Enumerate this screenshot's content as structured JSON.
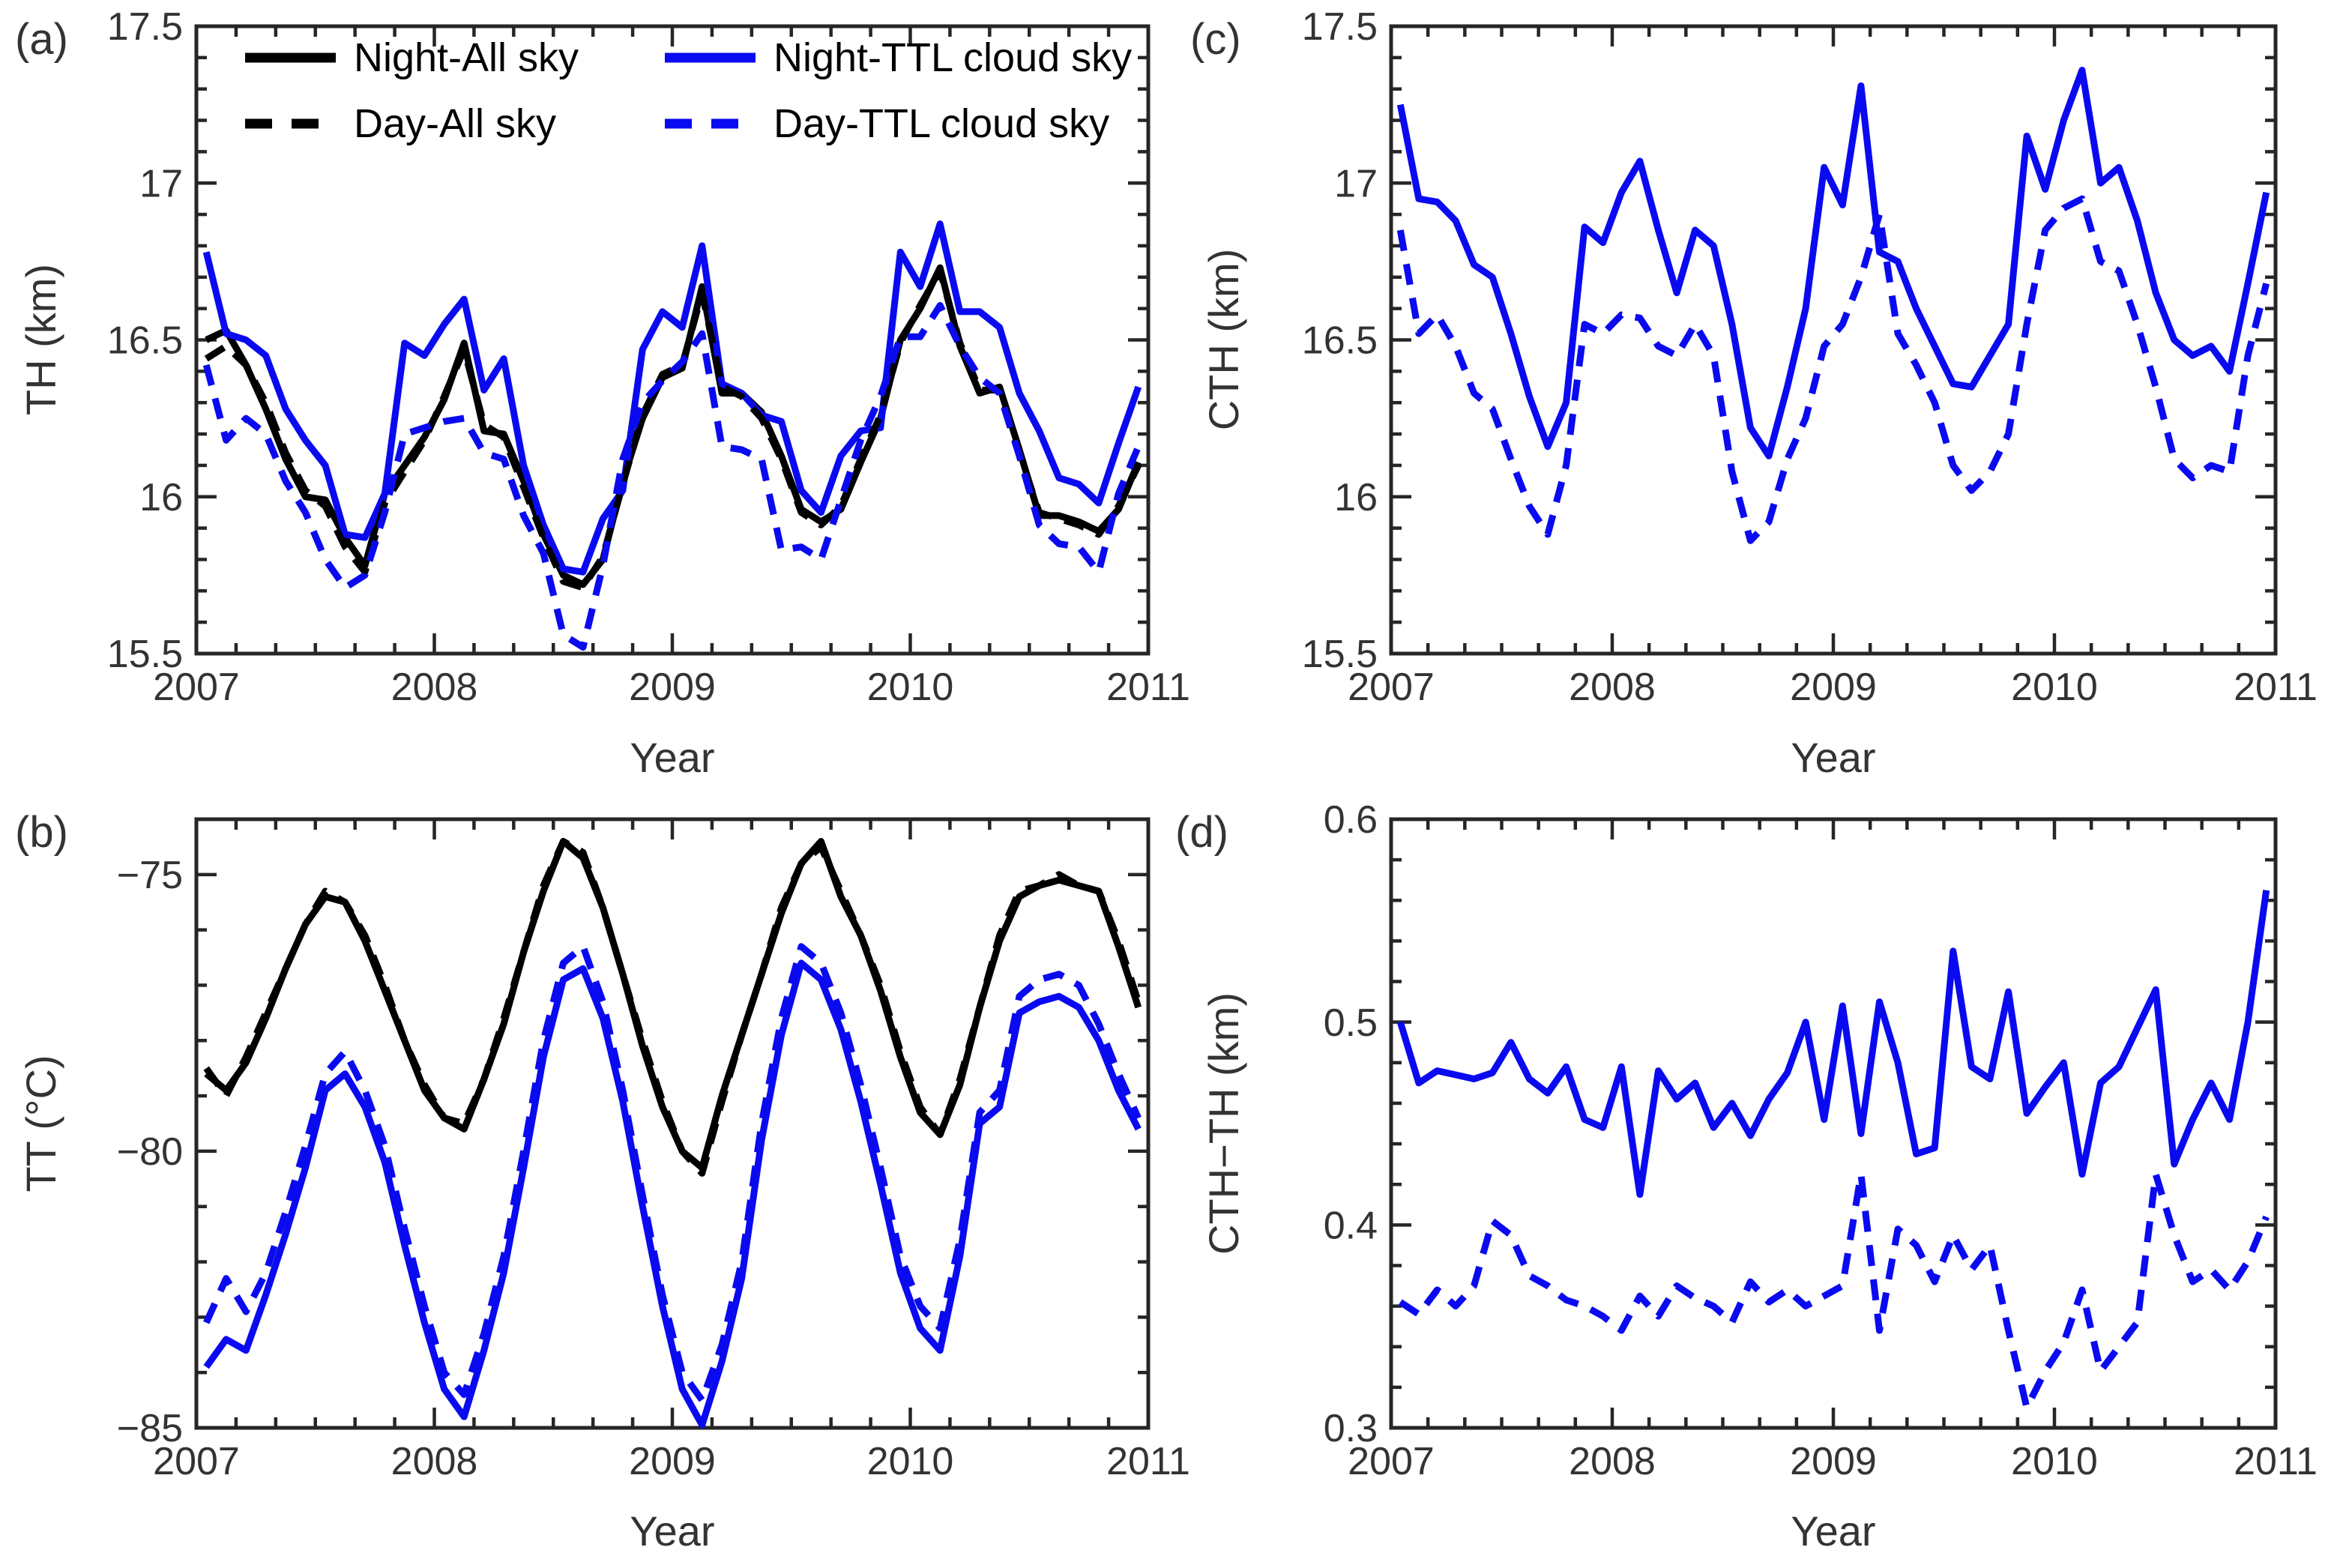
{
  "figure": {
    "background": "#ffffff",
    "description": "Four-panel line figure of monthly time series 2007-2010"
  },
  "colors": {
    "black": "#000000",
    "blue": "#0a0af0",
    "axis": "#262626",
    "tick_label": "#333333"
  },
  "legend": {
    "entries": [
      {
        "label": "Night-All sky",
        "color": "#000000",
        "dashed": false
      },
      {
        "label": "Day-All sky",
        "color": "#000000",
        "dashed": true
      },
      {
        "label": "Night-TTL cloud sky",
        "color": "#0a0af0",
        "dashed": false
      },
      {
        "label": "Day-TTL cloud sky",
        "color": "#0a0af0",
        "dashed": true
      }
    ]
  },
  "chart_data": {
    "type": "line",
    "x": {
      "start": 2007.0417,
      "step": 0.0833333,
      "count": 48,
      "unit": "year",
      "grid": false,
      "legend_position": "top-left panel (a), no frame"
    },
    "panels": [
      {
        "id": "a",
        "letter": "(a)",
        "ylabel": "TH (km)",
        "xlabel": "Year",
        "box": {
          "x0": 262,
          "y0": 35,
          "x1": 1532,
          "y1": 872
        },
        "xlim": [
          2007,
          2011
        ],
        "ylim": [
          15.5,
          17.5
        ],
        "xticks": {
          "values": [
            2007,
            2008,
            2009,
            2010,
            2011
          ],
          "labels": [
            "2007",
            "2008",
            "2009",
            "2010",
            "2011"
          ],
          "minor_step": 0.1666667
        },
        "yticks": {
          "values": [
            15.5,
            16,
            16.5,
            17,
            17.5
          ],
          "labels": [
            "15.5",
            "16",
            "16.5",
            "17",
            "17.5"
          ],
          "minor_step": 0.1
        },
        "series": [
          {
            "name": "Night-All sky",
            "color": "#000000",
            "dashed": false,
            "values": [
              16.5,
              16.53,
              16.42,
              16.28,
              16.12,
              16.0,
              15.99,
              15.87,
              15.78,
              16.01,
              16.1,
              16.19,
              16.31,
              16.49,
              16.21,
              16.2,
              16.05,
              15.88,
              15.75,
              15.72,
              15.8,
              16.05,
              16.25,
              16.38,
              16.41,
              16.67,
              16.33,
              16.33,
              16.27,
              16.13,
              15.96,
              15.92,
              15.96,
              16.11,
              16.25,
              16.5,
              16.6,
              16.73,
              16.48,
              16.33,
              16.35,
              16.15,
              15.94,
              15.94,
              15.92,
              15.89,
              15.96,
              16.11
            ]
          },
          {
            "name": "Day-All sky",
            "color": "#000000",
            "dashed": true,
            "values": [
              16.44,
              16.48,
              16.42,
              16.3,
              16.14,
              16.02,
              15.97,
              15.84,
              15.76,
              15.98,
              16.08,
              16.18,
              16.32,
              16.47,
              16.23,
              16.19,
              16.03,
              15.87,
              15.73,
              15.71,
              15.81,
              16.04,
              16.26,
              16.39,
              16.42,
              16.65,
              16.35,
              16.32,
              16.25,
              16.12,
              15.95,
              15.91,
              15.97,
              16.12,
              16.26,
              16.49,
              16.61,
              16.72,
              16.49,
              16.34,
              16.34,
              16.14,
              15.95,
              15.93,
              15.91,
              15.88,
              15.97,
              16.1
            ]
          },
          {
            "name": "Night-TTL cloud sky",
            "color": "#0a0af0",
            "dashed": false,
            "values": [
              16.78,
              16.52,
              16.5,
              16.45,
              16.28,
              16.18,
              16.1,
              15.88,
              15.87,
              16.01,
              16.49,
              16.45,
              16.55,
              16.63,
              16.34,
              16.44,
              16.1,
              15.91,
              15.77,
              15.76,
              15.93,
              16.02,
              16.47,
              16.59,
              16.54,
              16.8,
              16.36,
              16.33,
              16.26,
              16.24,
              16.02,
              15.95,
              16.13,
              16.21,
              16.22,
              16.78,
              16.67,
              16.87,
              16.59,
              16.59,
              16.54,
              16.33,
              16.21,
              16.06,
              16.04,
              15.98,
              16.17,
              16.35
            ]
          },
          {
            "name": "Day-TTL cloud sky",
            "color": "#0a0af0",
            "dashed": true,
            "values": [
              16.42,
              16.18,
              16.25,
              16.2,
              16.05,
              15.95,
              15.8,
              15.71,
              15.75,
              15.95,
              16.2,
              16.22,
              16.24,
              16.25,
              16.14,
              16.12,
              15.94,
              15.82,
              15.56,
              15.52,
              15.78,
              16.12,
              16.3,
              16.37,
              16.43,
              16.52,
              16.16,
              16.15,
              16.12,
              15.83,
              15.84,
              15.8,
              15.99,
              16.18,
              16.32,
              16.51,
              16.51,
              16.61,
              16.48,
              16.38,
              16.33,
              16.13,
              15.91,
              15.85,
              15.84,
              15.76,
              16.01,
              16.16
            ]
          }
        ]
      },
      {
        "id": "b",
        "letter": "(b)",
        "ylabel": "TT (°C)",
        "xlabel": "Year",
        "box": {
          "x0": 262,
          "y0": 1093,
          "x1": 1532,
          "y1": 1905
        },
        "xlim": [
          2007,
          2011
        ],
        "ylim": [
          -85,
          -74
        ],
        "xticks": {
          "values": [
            2007,
            2008,
            2009,
            2010,
            2011
          ],
          "labels": [
            "2007",
            "2008",
            "2009",
            "2010",
            "2011"
          ],
          "minor_step": 0.1666667
        },
        "yticks": {
          "values": [
            -85,
            -80,
            -75
          ],
          "labels": [
            "−85",
            "−80",
            "−75"
          ],
          "minor_step": 1
        },
        "series": [
          {
            "name": "Night-All sky",
            "color": "#000000",
            "dashed": false,
            "values": [
              -78.6,
              -78.9,
              -78.4,
              -77.6,
              -76.7,
              -75.9,
              -75.4,
              -75.5,
              -76.2,
              -77.1,
              -78.0,
              -78.9,
              -79.4,
              -79.6,
              -78.7,
              -77.7,
              -76.4,
              -75.3,
              -74.4,
              -74.7,
              -75.6,
              -76.8,
              -78.1,
              -79.2,
              -80.0,
              -80.3,
              -79.0,
              -77.9,
              -76.8,
              -75.7,
              -74.8,
              -74.4,
              -75.4,
              -76.1,
              -77.1,
              -78.3,
              -79.3,
              -79.7,
              -78.8,
              -77.4,
              -76.2,
              -75.4,
              -75.2,
              -75.1,
              -75.2,
              -75.3,
              -76.3,
              -77.4
            ]
          },
          {
            "name": "Day-All sky",
            "color": "#000000",
            "dashed": true,
            "values": [
              -78.5,
              -79.0,
              -78.3,
              -77.5,
              -76.7,
              -75.9,
              -75.3,
              -75.5,
              -76.1,
              -77.0,
              -78.0,
              -78.8,
              -79.4,
              -79.5,
              -78.7,
              -77.6,
              -76.4,
              -75.2,
              -74.4,
              -74.6,
              -75.6,
              -76.8,
              -78.0,
              -79.1,
              -80.0,
              -80.4,
              -79.1,
              -77.9,
              -76.8,
              -75.6,
              -74.8,
              -74.5,
              -75.3,
              -76.1,
              -77.0,
              -78.2,
              -79.2,
              -79.7,
              -78.7,
              -77.4,
              -76.1,
              -75.3,
              -75.2,
              -75.0,
              -75.2,
              -75.3,
              -76.2,
              -77.3
            ]
          },
          {
            "name": "Night-TTL cloud sky",
            "color": "#0a0af0",
            "dashed": false,
            "values": [
              -83.9,
              -83.4,
              -83.6,
              -82.6,
              -81.5,
              -80.3,
              -78.9,
              -78.6,
              -79.2,
              -80.2,
              -81.7,
              -83.1,
              -84.3,
              -84.8,
              -83.6,
              -82.2,
              -80.3,
              -78.3,
              -76.9,
              -76.7,
              -77.6,
              -79.1,
              -81.0,
              -82.8,
              -84.3,
              -84.95,
              -83.8,
              -82.3,
              -79.8,
              -77.9,
              -76.6,
              -76.9,
              -77.8,
              -79.1,
              -80.6,
              -82.2,
              -83.2,
              -83.6,
              -81.9,
              -79.5,
              -79.2,
              -77.5,
              -77.3,
              -77.2,
              -77.4,
              -78.0,
              -78.9,
              -79.6
            ]
          },
          {
            "name": "Day-TTL cloud sky",
            "color": "#0a0af0",
            "dashed": true,
            "values": [
              -83.1,
              -82.3,
              -82.9,
              -82.2,
              -81.1,
              -79.9,
              -78.6,
              -78.2,
              -78.9,
              -79.9,
              -81.4,
              -82.8,
              -84.0,
              -84.4,
              -83.3,
              -81.9,
              -80.0,
              -78.0,
              -76.6,
              -76.3,
              -77.3,
              -78.9,
              -80.8,
              -82.6,
              -84.0,
              -84.5,
              -83.5,
              -82.0,
              -79.5,
              -77.6,
              -76.3,
              -76.6,
              -77.5,
              -78.8,
              -80.3,
              -81.9,
              -82.8,
              -83.2,
              -81.6,
              -79.3,
              -78.9,
              -77.2,
              -76.9,
              -76.8,
              -77.0,
              -77.7,
              -78.6,
              -79.4
            ]
          }
        ]
      },
      {
        "id": "c",
        "letter": "(c)",
        "ylabel": "CTH (km)",
        "xlabel": "Year",
        "box": {
          "x0": 1856,
          "y0": 35,
          "x1": 3036,
          "y1": 872
        },
        "xlim": [
          2007,
          2011
        ],
        "ylim": [
          15.5,
          17.5
        ],
        "xticks": {
          "values": [
            2007,
            2008,
            2009,
            2010,
            2011
          ],
          "labels": [
            "2007",
            "2008",
            "2009",
            "2010",
            "2011"
          ],
          "minor_step": 0.1666667
        },
        "yticks": {
          "values": [
            15.5,
            16,
            16.5,
            17,
            17.5
          ],
          "labels": [
            "15.5",
            "16",
            "16.5",
            "17",
            "17.5"
          ],
          "minor_step": 0.1
        },
        "series": [
          {
            "name": "Night-TTL cloud sky",
            "color": "#0a0af0",
            "dashed": false,
            "values": [
              17.25,
              16.95,
              16.94,
              16.88,
              16.74,
              16.7,
              16.52,
              16.32,
              16.16,
              16.3,
              16.86,
              16.81,
              16.97,
              17.07,
              16.85,
              16.65,
              16.85,
              16.8,
              16.55,
              16.22,
              16.13,
              16.35,
              16.6,
              17.05,
              16.93,
              17.31,
              16.78,
              16.75,
              16.6,
              16.48,
              16.36,
              16.35,
              16.45,
              16.55,
              17.15,
              16.98,
              17.2,
              17.36,
              17.0,
              17.05,
              16.88,
              16.65,
              16.5,
              16.45,
              16.48,
              16.4,
              16.68,
              16.97
            ]
          },
          {
            "name": "Day-TTL cloud sky",
            "color": "#0a0af0",
            "dashed": true,
            "values": [
              16.85,
              16.52,
              16.58,
              16.48,
              16.33,
              16.28,
              16.12,
              15.97,
              15.88,
              16.1,
              16.55,
              16.52,
              16.58,
              16.57,
              16.48,
              16.45,
              16.55,
              16.45,
              16.08,
              15.86,
              15.92,
              16.12,
              16.25,
              16.48,
              16.55,
              16.7,
              16.9,
              16.52,
              16.42,
              16.3,
              16.1,
              16.02,
              16.08,
              16.2,
              16.55,
              16.85,
              16.92,
              16.95,
              16.75,
              16.72,
              16.55,
              16.35,
              16.12,
              16.06,
              16.1,
              16.08,
              16.45,
              16.68
            ]
          }
        ]
      },
      {
        "id": "d",
        "letter": "(d)",
        "ylabel": "CTH−TH (km)",
        "xlabel": "Year",
        "box": {
          "x0": 1856,
          "y0": 1093,
          "x1": 3036,
          "y1": 1905
        },
        "xlim": [
          2007,
          2011
        ],
        "ylim": [
          0.3,
          0.6
        ],
        "xticks": {
          "values": [
            2007,
            2008,
            2009,
            2010,
            2011
          ],
          "labels": [
            "2007",
            "2008",
            "2009",
            "2010",
            "2011"
          ],
          "minor_step": 0.1666667
        },
        "yticks": {
          "values": [
            0.3,
            0.4,
            0.5,
            0.6
          ],
          "labels": [
            "0.3",
            "0.4",
            "0.5",
            "0.6"
          ],
          "minor_step": 0.02
        },
        "series": [
          {
            "name": "Night-TTL cloud sky",
            "color": "#0a0af0",
            "dashed": false,
            "values": [
              0.5,
              0.47,
              0.476,
              0.474,
              0.472,
              0.475,
              0.49,
              0.472,
              0.465,
              0.478,
              0.452,
              0.448,
              0.478,
              0.415,
              0.476,
              0.462,
              0.47,
              0.448,
              0.46,
              0.444,
              0.462,
              0.475,
              0.5,
              0.452,
              0.508,
              0.445,
              0.51,
              0.48,
              0.435,
              0.438,
              0.535,
              0.478,
              0.472,
              0.515,
              0.455,
              0.468,
              0.48,
              0.425,
              0.47,
              0.478,
              0.497,
              0.516,
              0.43,
              0.452,
              0.47,
              0.452,
              0.5,
              0.565
            ]
          },
          {
            "name": "Day-TTL cloud sky",
            "color": "#0a0af0",
            "dashed": true,
            "values": [
              0.362,
              0.356,
              0.368,
              0.36,
              0.37,
              0.402,
              0.395,
              0.375,
              0.37,
              0.363,
              0.36,
              0.355,
              0.348,
              0.365,
              0.355,
              0.37,
              0.364,
              0.36,
              0.352,
              0.372,
              0.362,
              0.368,
              0.36,
              0.365,
              0.37,
              0.425,
              0.348,
              0.398,
              0.39,
              0.372,
              0.395,
              0.378,
              0.39,
              0.348,
              0.31,
              0.328,
              0.342,
              0.368,
              0.328,
              0.34,
              0.352,
              0.425,
              0.395,
              0.372,
              0.378,
              0.368,
              0.382,
              0.404
            ]
          }
        ]
      }
    ]
  }
}
